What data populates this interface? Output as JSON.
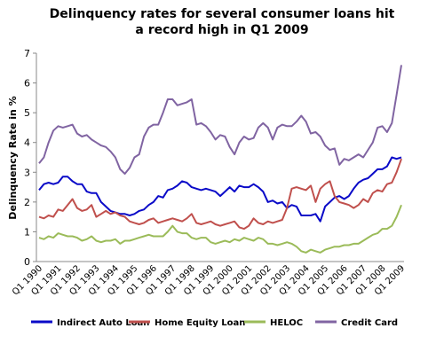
{
  "chart_data": {
    "type": "line",
    "title": [
      "Delinquency rates for several consumer loans hit",
      "a record high in Q1 2009"
    ],
    "y_label": "Delinquency Rate in %",
    "categories": [
      "Q1 1990",
      null,
      null,
      null,
      "Q1 1991",
      null,
      null,
      null,
      "Q1 1992",
      null,
      null,
      null,
      "Q1 1993",
      null,
      null,
      null,
      "Q1 1994",
      null,
      null,
      null,
      "Q1 1995",
      null,
      null,
      null,
      "Q1 1996",
      null,
      null,
      null,
      "Q1 1997",
      null,
      null,
      null,
      "Q1 1998",
      null,
      null,
      null,
      "Q1 1999",
      null,
      null,
      null,
      "Q1 2000",
      null,
      null,
      null,
      "Q1 2001",
      null,
      null,
      null,
      "Q1 2002",
      null,
      null,
      null,
      "Q1 2003",
      null,
      null,
      null,
      "Q1 2004",
      null,
      null,
      null,
      "Q1 2005",
      null,
      null,
      null,
      "Q1 2006",
      null,
      null,
      null,
      "Q1 2007",
      null,
      null,
      null,
      "Q1 2008",
      null,
      null,
      null,
      "Q1 2009"
    ],
    "series": [
      {
        "name": "Indirect Auto Loan",
        "color": "#0a0ac8",
        "values": [
          2.4,
          2.6,
          2.65,
          2.6,
          2.65,
          2.85,
          2.85,
          2.7,
          2.6,
          2.6,
          2.35,
          2.3,
          2.3,
          2.0,
          1.85,
          1.7,
          1.65,
          1.6,
          1.6,
          1.55,
          1.6,
          1.7,
          1.75,
          1.9,
          2.0,
          2.2,
          2.15,
          2.4,
          2.45,
          2.55,
          2.7,
          2.65,
          2.5,
          2.45,
          2.4,
          2.45,
          2.4,
          2.35,
          2.2,
          2.35,
          2.5,
          2.35,
          2.55,
          2.5,
          2.5,
          2.6,
          2.5,
          2.35,
          2.0,
          2.05,
          1.95,
          2.0,
          1.8,
          1.9,
          1.85,
          1.55,
          1.55,
          1.55,
          1.6,
          1.35,
          1.85,
          2.0,
          2.15,
          2.2,
          2.1,
          2.2,
          2.45,
          2.65,
          2.75,
          2.8,
          2.95,
          3.1,
          3.1,
          3.2,
          3.5,
          3.45,
          3.5
        ]
      },
      {
        "name": "Home Equity Loan",
        "color": "#c0504d",
        "values": [
          1.5,
          1.45,
          1.55,
          1.5,
          1.75,
          1.7,
          1.9,
          2.1,
          1.8,
          1.7,
          1.75,
          1.9,
          1.5,
          1.6,
          1.7,
          1.6,
          1.65,
          1.55,
          1.5,
          1.35,
          1.3,
          1.25,
          1.3,
          1.4,
          1.45,
          1.3,
          1.35,
          1.4,
          1.45,
          1.4,
          1.35,
          1.45,
          1.6,
          1.3,
          1.25,
          1.3,
          1.35,
          1.25,
          1.2,
          1.25,
          1.3,
          1.35,
          1.15,
          1.1,
          1.2,
          1.45,
          1.3,
          1.25,
          1.35,
          1.3,
          1.35,
          1.4,
          1.8,
          2.45,
          2.5,
          2.45,
          2.4,
          2.55,
          2.0,
          2.45,
          2.6,
          2.7,
          2.2,
          2.0,
          1.95,
          1.9,
          1.8,
          1.9,
          2.1,
          2.0,
          2.3,
          2.4,
          2.35,
          2.6,
          2.65,
          3.0,
          3.45
        ]
      },
      {
        "name": "HELOC",
        "color": "#9bbb59",
        "values": [
          0.8,
          0.75,
          0.85,
          0.8,
          0.95,
          0.9,
          0.85,
          0.85,
          0.8,
          0.7,
          0.75,
          0.85,
          0.7,
          0.65,
          0.7,
          0.7,
          0.75,
          0.6,
          0.7,
          0.7,
          0.75,
          0.8,
          0.85,
          0.9,
          0.85,
          0.85,
          0.85,
          1.0,
          1.2,
          1.0,
          0.95,
          0.95,
          0.8,
          0.75,
          0.8,
          0.8,
          0.65,
          0.6,
          0.65,
          0.7,
          0.65,
          0.75,
          0.7,
          0.8,
          0.75,
          0.7,
          0.8,
          0.75,
          0.6,
          0.6,
          0.55,
          0.6,
          0.65,
          0.6,
          0.5,
          0.35,
          0.3,
          0.4,
          0.35,
          0.3,
          0.4,
          0.45,
          0.5,
          0.5,
          0.55,
          0.55,
          0.6,
          0.6,
          0.7,
          0.8,
          0.9,
          0.95,
          1.1,
          1.1,
          1.2,
          1.5,
          1.9
        ]
      },
      {
        "name": "Credit Card",
        "color": "#8064a2",
        "values": [
          3.3,
          3.5,
          4.0,
          4.4,
          4.55,
          4.5,
          4.55,
          4.6,
          4.3,
          4.2,
          4.25,
          4.1,
          4.0,
          3.9,
          3.85,
          3.7,
          3.5,
          3.1,
          2.95,
          3.15,
          3.5,
          3.6,
          4.2,
          4.5,
          4.6,
          4.6,
          5.0,
          5.45,
          5.45,
          5.25,
          5.3,
          5.35,
          5.45,
          4.6,
          4.65,
          4.55,
          4.35,
          4.1,
          4.25,
          4.2,
          3.85,
          3.6,
          4.0,
          4.2,
          4.1,
          4.15,
          4.5,
          4.65,
          4.5,
          4.1,
          4.5,
          4.6,
          4.55,
          4.55,
          4.7,
          4.9,
          4.7,
          4.3,
          4.35,
          4.2,
          3.9,
          3.75,
          3.8,
          3.25,
          3.45,
          3.4,
          3.5,
          3.6,
          3.5,
          3.75,
          4.0,
          4.5,
          4.55,
          4.35,
          4.65,
          5.6,
          6.6
        ]
      }
    ],
    "ylim": [
      0,
      7
    ],
    "yticks": [
      0,
      1,
      2,
      3,
      4,
      5,
      6,
      7
    ],
    "grid": false,
    "legend": "bottom"
  }
}
